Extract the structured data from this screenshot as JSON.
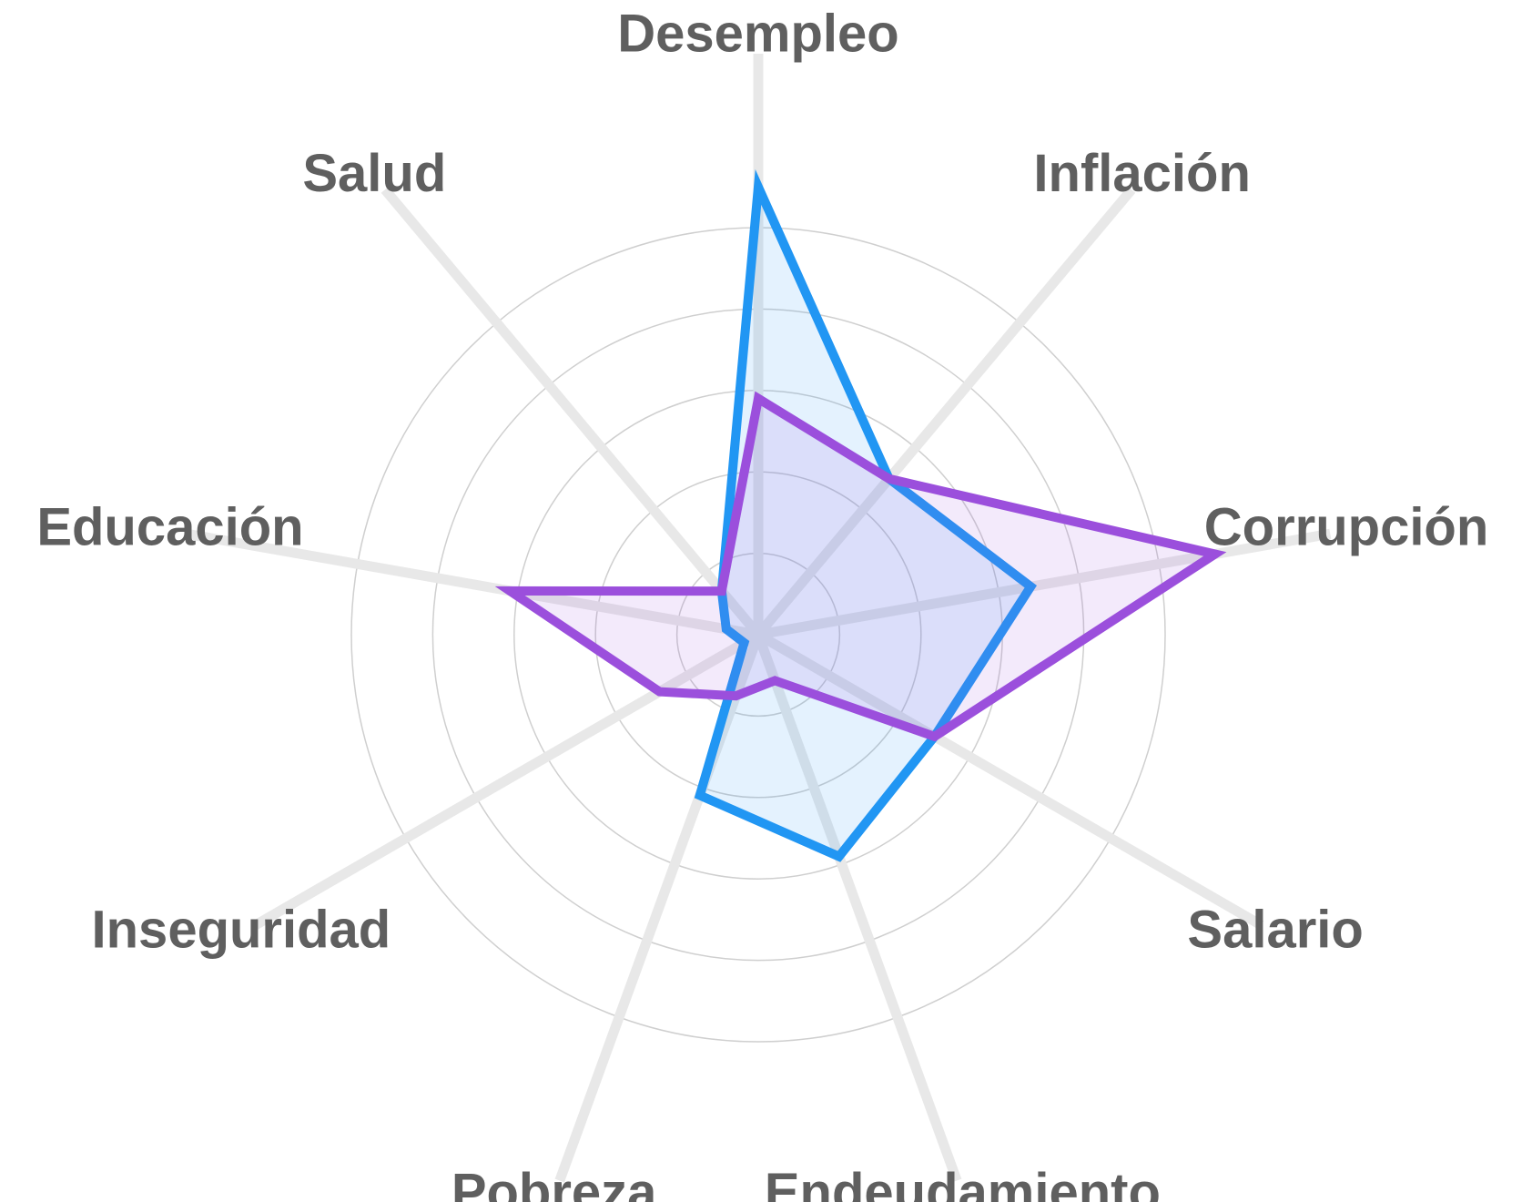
{
  "chart_data": {
    "type": "radar",
    "categories": [
      "Desempleo",
      "Inflación",
      "Corrupción",
      "Salario",
      "Endeudamiento",
      "Pobreza",
      "Inseguridad",
      "Educación",
      "Salud"
    ],
    "series": [
      {
        "color": "#2196f3",
        "values": [
          5.5,
          2.5,
          3.4,
          2.5,
          2.9,
          2.1,
          0.2,
          0.4,
          0.7
        ]
      },
      {
        "color": "#9b4fdc",
        "values": [
          2.9,
          2.5,
          5.7,
          2.5,
          0.6,
          0.8,
          1.4,
          3.1,
          0.7
        ]
      }
    ],
    "ylim": [
      0,
      5
    ],
    "yticks": [
      1,
      2,
      3,
      4,
      5
    ],
    "grid": true
  }
}
